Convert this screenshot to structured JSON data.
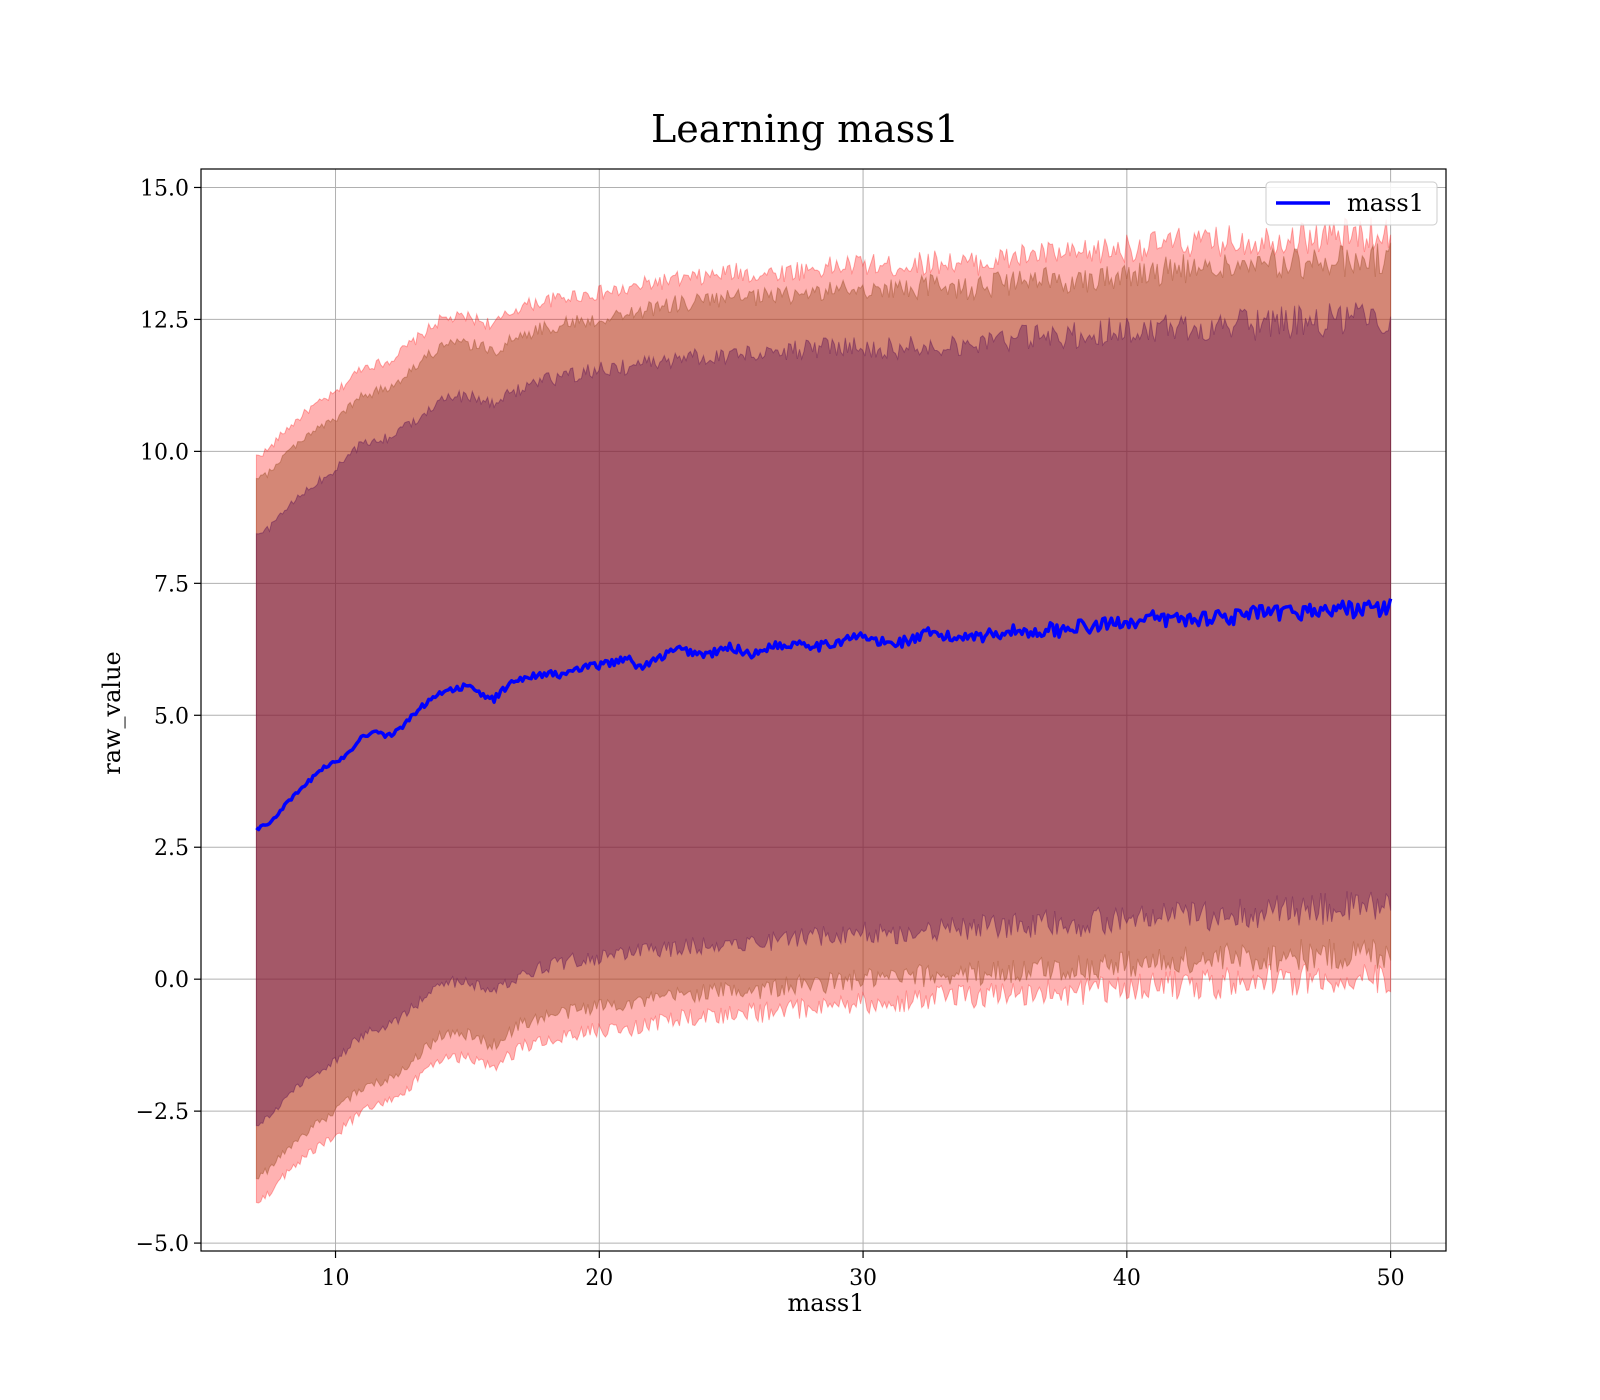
{
  "chart_data": {
    "type": "line",
    "title": "Learning mass1",
    "xlabel": "mass1",
    "ylabel": "raw_value",
    "xlim": [
      4.9,
      52.1
    ],
    "ylim": [
      -5.15,
      15.35
    ],
    "xticks": [
      10,
      20,
      30,
      40,
      50
    ],
    "yticks": [
      -5.0,
      -2.5,
      0.0,
      2.5,
      5.0,
      7.5,
      10.0,
      12.5,
      15.0
    ],
    "ytick_labels": [
      "−5.0",
      "−2.5",
      "0.0",
      "2.5",
      "5.0",
      "7.5",
      "10.0",
      "12.5",
      "15.0"
    ],
    "grid": true,
    "legend": {
      "placement": "top-right",
      "entries": [
        "mass1"
      ]
    },
    "colors": {
      "line": "#0000ff",
      "band_outer": "#ff0000",
      "band_middle": "#a0522d",
      "band_inner": "#4b0050"
    },
    "series": [
      {
        "name": "mass1",
        "style": "line",
        "x": [
          7,
          7.5,
          8,
          8.5,
          9,
          9.5,
          10,
          10.5,
          11,
          11.5,
          12,
          12.5,
          13,
          13.5,
          14,
          14.5,
          15,
          15.5,
          16,
          16.5,
          17,
          17.5,
          18,
          18.5,
          19,
          19.5,
          20,
          20.5,
          21,
          21.5,
          22,
          22.5,
          23,
          23.5,
          24,
          24.5,
          25,
          25.5,
          26,
          26.5,
          27,
          27.5,
          28,
          28.5,
          29,
          29.5,
          30,
          30.5,
          31,
          31.5,
          32,
          32.5,
          33,
          33.5,
          34,
          34.5,
          35,
          35.5,
          36,
          36.5,
          37,
          37.5,
          38,
          38.5,
          39,
          39.5,
          40,
          40.5,
          41,
          41.5,
          42,
          42.5,
          43,
          43.5,
          44,
          44.5,
          45,
          45.5,
          46,
          46.5,
          47,
          47.5,
          48,
          48.5,
          49,
          49.5,
          50
        ],
        "y": [
          2.85,
          2.95,
          3.25,
          3.5,
          3.75,
          4.0,
          4.1,
          4.3,
          4.6,
          4.7,
          4.6,
          4.75,
          5.05,
          5.25,
          5.45,
          5.5,
          5.55,
          5.4,
          5.3,
          5.55,
          5.7,
          5.75,
          5.8,
          5.75,
          5.85,
          5.9,
          5.95,
          6.0,
          6.1,
          5.9,
          6.0,
          6.15,
          6.25,
          6.2,
          6.15,
          6.2,
          6.3,
          6.2,
          6.15,
          6.35,
          6.3,
          6.4,
          6.35,
          6.3,
          6.4,
          6.45,
          6.5,
          6.4,
          6.35,
          6.4,
          6.45,
          6.55,
          6.5,
          6.45,
          6.55,
          6.5,
          6.55,
          6.6,
          6.6,
          6.55,
          6.65,
          6.6,
          6.7,
          6.65,
          6.7,
          6.75,
          6.8,
          6.75,
          6.85,
          6.8,
          6.85,
          6.8,
          6.85,
          6.9,
          6.85,
          6.9,
          6.95,
          6.9,
          6.95,
          6.95,
          7.0,
          6.95,
          7.05,
          7.0,
          7.05,
          7.0,
          7.05
        ]
      },
      {
        "name": "",
        "style": "band",
        "level": "outer",
        "x": [
          7,
          7.5,
          8,
          9,
          10,
          11,
          12,
          13,
          14,
          15,
          16,
          17,
          18,
          19,
          20,
          21,
          22,
          23,
          24,
          25,
          26,
          27,
          28,
          29,
          30,
          31,
          32,
          33,
          34,
          35,
          36,
          37,
          38,
          39,
          40,
          41,
          42,
          43,
          44,
          45,
          46,
          47,
          48,
          49,
          50
        ],
        "upper": [
          9.9,
          10.05,
          10.35,
          10.8,
          11.1,
          11.6,
          11.7,
          12.1,
          12.5,
          12.55,
          12.4,
          12.75,
          12.85,
          12.95,
          13.0,
          13.05,
          13.2,
          13.25,
          13.3,
          13.4,
          13.35,
          13.4,
          13.45,
          13.5,
          13.55,
          13.5,
          13.55,
          13.6,
          13.55,
          13.6,
          13.7,
          13.75,
          13.7,
          13.8,
          13.85,
          13.9,
          13.95,
          13.95,
          14.0,
          14.0,
          14.05,
          14.05,
          14.1,
          14.1,
          14.15
        ],
        "lower": [
          -4.2,
          -4.05,
          -3.75,
          -3.3,
          -2.95,
          -2.5,
          -2.35,
          -1.95,
          -1.5,
          -1.5,
          -1.7,
          -1.3,
          -1.15,
          -1.05,
          -0.95,
          -0.95,
          -0.85,
          -0.75,
          -0.7,
          -0.65,
          -0.65,
          -0.6,
          -0.55,
          -0.5,
          -0.45,
          -0.45,
          -0.4,
          -0.35,
          -0.35,
          -0.3,
          -0.3,
          -0.25,
          -0.25,
          -0.2,
          -0.15,
          -0.15,
          -0.1,
          -0.1,
          -0.05,
          -0.05,
          0.0,
          0.0,
          0.0,
          0.05,
          0.05
        ]
      },
      {
        "name": "",
        "style": "band",
        "level": "middle",
        "x": [
          7,
          7.5,
          8,
          9,
          10,
          11,
          12,
          13,
          14,
          15,
          16,
          17,
          18,
          19,
          20,
          21,
          22,
          23,
          24,
          25,
          26,
          27,
          28,
          29,
          30,
          31,
          32,
          33,
          34,
          35,
          36,
          37,
          38,
          39,
          40,
          41,
          42,
          43,
          44,
          45,
          46,
          47,
          48,
          49,
          50
        ],
        "upper": [
          9.45,
          9.6,
          9.9,
          10.35,
          10.6,
          11.05,
          11.2,
          11.6,
          12.0,
          12.05,
          11.9,
          12.2,
          12.35,
          12.45,
          12.5,
          12.6,
          12.7,
          12.8,
          12.85,
          12.9,
          12.9,
          12.95,
          13.0,
          13.05,
          13.1,
          13.05,
          13.1,
          13.15,
          13.1,
          13.15,
          13.2,
          13.25,
          13.25,
          13.3,
          13.35,
          13.4,
          13.45,
          13.45,
          13.5,
          13.5,
          13.55,
          13.55,
          13.6,
          13.6,
          13.65
        ],
        "lower": [
          -3.75,
          -3.6,
          -3.3,
          -2.85,
          -2.5,
          -2.05,
          -1.9,
          -1.5,
          -1.05,
          -1.05,
          -1.25,
          -0.85,
          -0.7,
          -0.6,
          -0.5,
          -0.45,
          -0.4,
          -0.3,
          -0.25,
          -0.2,
          -0.2,
          -0.15,
          -0.1,
          -0.05,
          0.0,
          0.0,
          0.05,
          0.1,
          0.1,
          0.15,
          0.15,
          0.2,
          0.2,
          0.25,
          0.3,
          0.3,
          0.35,
          0.35,
          0.4,
          0.4,
          0.45,
          0.45,
          0.45,
          0.5,
          0.5
        ]
      },
      {
        "name": "",
        "style": "band",
        "level": "inner",
        "x": [
          7,
          7.5,
          8,
          9,
          10,
          11,
          12,
          13,
          14,
          15,
          16,
          17,
          18,
          19,
          20,
          21,
          22,
          23,
          24,
          25,
          26,
          27,
          28,
          29,
          30,
          31,
          32,
          33,
          34,
          35,
          36,
          37,
          38,
          39,
          40,
          41,
          42,
          43,
          44,
          45,
          46,
          47,
          48,
          49,
          50
        ],
        "upper": [
          8.4,
          8.55,
          8.85,
          9.3,
          9.65,
          10.15,
          10.25,
          10.6,
          11.0,
          11.05,
          10.9,
          11.2,
          11.35,
          11.45,
          11.55,
          11.6,
          11.7,
          11.75,
          11.8,
          11.85,
          11.85,
          11.9,
          11.95,
          12.0,
          12.0,
          11.95,
          12.0,
          12.05,
          12.05,
          12.1,
          12.15,
          12.15,
          12.2,
          12.25,
          12.3,
          12.3,
          12.35,
          12.35,
          12.4,
          12.4,
          12.45,
          12.45,
          12.5,
          12.5,
          12.55
        ],
        "lower": [
          -2.75,
          -2.6,
          -2.3,
          -1.85,
          -1.55,
          -1.05,
          -0.9,
          -0.5,
          -0.05,
          -0.05,
          -0.25,
          0.1,
          0.25,
          0.35,
          0.4,
          0.5,
          0.55,
          0.6,
          0.65,
          0.7,
          0.7,
          0.75,
          0.8,
          0.85,
          0.9,
          0.85,
          0.9,
          0.95,
          0.95,
          1.0,
          1.0,
          1.05,
          1.05,
          1.1,
          1.15,
          1.15,
          1.2,
          1.2,
          1.25,
          1.25,
          1.3,
          1.3,
          1.35,
          1.35,
          1.4
        ]
      }
    ]
  }
}
